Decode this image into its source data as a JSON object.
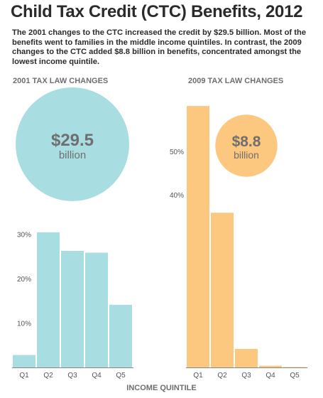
{
  "header": {
    "title": "Child Tax Credit (CTC) Benefits, 2012",
    "intro": "The 2001 changes to the CTC increased the credit by $29.5 billion. Most of the benefits went to families in the middle income quintiles. In contrast, the 2009 changes to the CTC added $8.8 billion in benefits, concentrated amongst the lowest income quintile."
  },
  "x_axis_title": "INCOME QUINTILE",
  "colors": {
    "left_fill": "#a8dde2",
    "right_fill": "#fcc87f",
    "bubble_text": "#6f6f6f",
    "tick_text": "#555555",
    "axis": "#888888"
  },
  "chart_data": [
    {
      "type": "bar",
      "title": "2001 TAX LAW CHANGES",
      "total": {
        "amount": "$29.5",
        "unit": "billion",
        "value_billion": 29.5
      },
      "categories": [
        "Q1",
        "Q2",
        "Q3",
        "Q4",
        "Q5"
      ],
      "values": [
        2.8,
        30.4,
        26.2,
        25.8,
        14.1
      ],
      "yticks": [
        10,
        20,
        30
      ],
      "ytick_labels": [
        "10%",
        "20%",
        "30%"
      ],
      "ylim": [
        0,
        31
      ],
      "grid": false
    },
    {
      "type": "bar",
      "title": "2009 TAX LAW CHANGES",
      "total": {
        "amount": "$8.8",
        "unit": "billion",
        "value_billion": 8.8
      },
      "categories": [
        "Q1",
        "Q2",
        "Q3",
        "Q4",
        "Q5"
      ],
      "values": [
        60.5,
        35.8,
        4.3,
        0.4,
        0.1
      ],
      "yticks": [
        40,
        50
      ],
      "ytick_labels": [
        "40%",
        "50%"
      ],
      "ylim": [
        0,
        62
      ],
      "grid": false
    }
  ]
}
